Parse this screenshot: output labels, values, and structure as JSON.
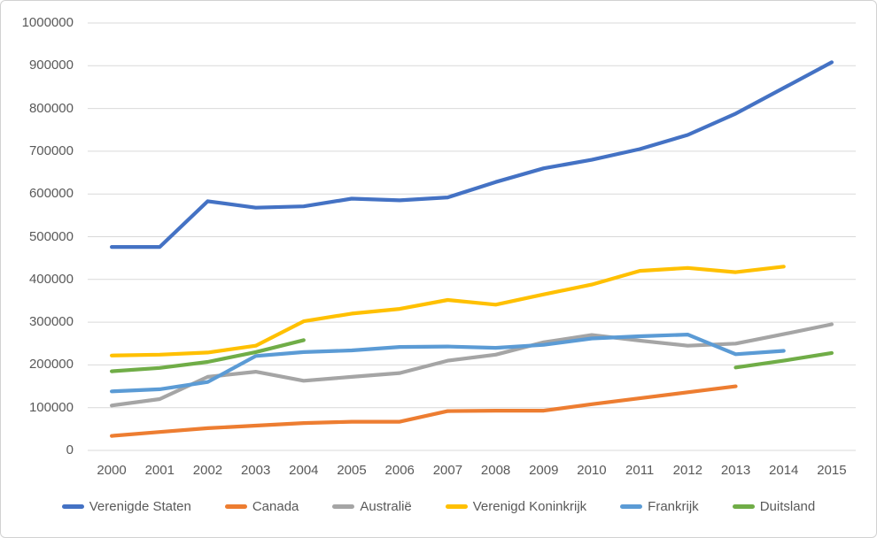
{
  "chart_data": {
    "type": "line",
    "title": "",
    "xlabel": "",
    "ylabel": "",
    "categories": [
      "2000",
      "2001",
      "2002",
      "2003",
      "2004",
      "2005",
      "2006",
      "2007",
      "2008",
      "2009",
      "2010",
      "2011",
      "2012",
      "2013",
      "2014",
      "2015"
    ],
    "series": [
      {
        "name": "Verenigde Staten",
        "color": "#4472C4",
        "values": [
          476000,
          476000,
          583000,
          568000,
          571000,
          589000,
          585000,
          592000,
          628000,
          660000,
          680000,
          705000,
          738000,
          788000,
          848000,
          908000
        ]
      },
      {
        "name": "Canada",
        "color": "#ED7D31",
        "values": [
          34000,
          43000,
          52000,
          58000,
          64000,
          67000,
          67000,
          92000,
          93000,
          93000,
          108000,
          122000,
          136000,
          150000,
          null,
          null
        ]
      },
      {
        "name": "Australië",
        "color": "#A5A5A5",
        "values": [
          105000,
          120000,
          172000,
          184000,
          163000,
          172000,
          181000,
          210000,
          224000,
          253000,
          270000,
          257000,
          245000,
          250000,
          272000,
          295000
        ]
      },
      {
        "name": "Verenigd Koninkrijk",
        "color": "#FFC000",
        "values": [
          222000,
          224000,
          229000,
          245000,
          302000,
          320000,
          331000,
          352000,
          341000,
          365000,
          388000,
          420000,
          427000,
          417000,
          430000,
          null
        ]
      },
      {
        "name": "Frankrijk",
        "color": "#5B9BD5",
        "values": [
          138000,
          143000,
          160000,
          221000,
          230000,
          234000,
          242000,
          243000,
          240000,
          247000,
          262000,
          267000,
          271000,
          225000,
          233000,
          null
        ]
      },
      {
        "name": "Duitsland",
        "color": "#70AD47",
        "values": [
          185000,
          193000,
          207000,
          230000,
          258000,
          null,
          null,
          null,
          null,
          null,
          null,
          null,
          null,
          194000,
          210000,
          228000
        ]
      }
    ],
    "ylim": [
      0,
      1000000
    ],
    "y_step": 100000,
    "y_tick_labels": [
      "0",
      "100000",
      "200000",
      "300000",
      "400000",
      "500000",
      "600000",
      "700000",
      "800000",
      "900000",
      "1000000"
    ],
    "grid": "horizontal",
    "legend_position": "bottom"
  },
  "style": {
    "gridline_color": "#d9d9d9",
    "axis_text_color": "#595959",
    "background_color": "#ffffff",
    "border_color": "#d2d2d2"
  }
}
